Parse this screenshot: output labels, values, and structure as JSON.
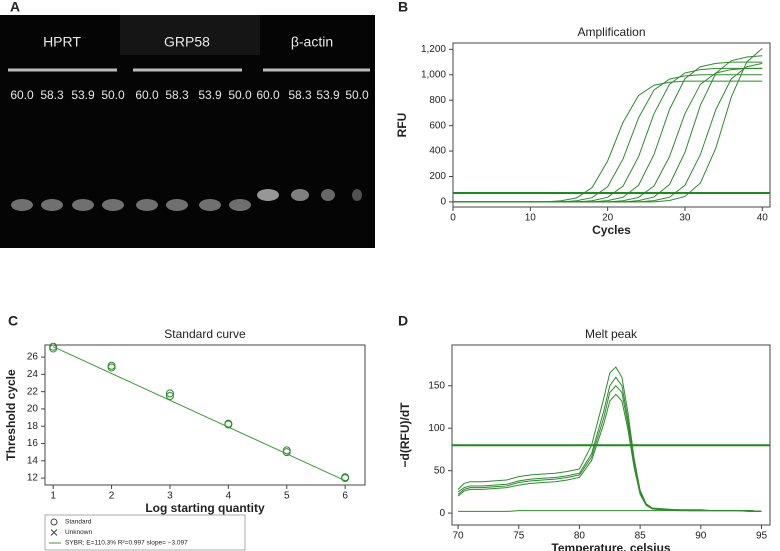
{
  "gel": {
    "panel_label": "A",
    "lanes": [
      {
        "gene": "HPRT",
        "temperatures": [
          "60.0",
          "58.3",
          "53.9",
          "50.0"
        ]
      },
      {
        "gene": "GRP58",
        "temperatures": [
          "60.0",
          "58.3",
          "53.9",
          "50.0"
        ]
      },
      {
        "gene": "β-actin",
        "temperatures": [
          "60.0",
          "58.3",
          "53.9",
          "50.0"
        ]
      }
    ]
  },
  "chart_data": [
    {
      "type": "line",
      "panel_label": "B",
      "title": "Amplification",
      "x_label": "Cycles",
      "y_label": "RFU",
      "x": [
        0,
        2,
        4,
        6,
        8,
        10,
        12,
        14,
        16,
        18,
        20,
        22,
        24,
        26,
        28,
        30,
        32,
        34,
        36,
        38,
        40
      ],
      "series": [
        {
          "color": "#2e8b2e",
          "values": [
            0,
            0,
            0,
            0,
            0,
            0,
            0,
            9,
            32,
            113,
            322,
            628,
            837,
            918,
            941,
            950,
            950,
            950,
            950,
            950,
            950
          ]
        },
        {
          "color": "#2e8b2e",
          "values": [
            0,
            0,
            0,
            0,
            0,
            0,
            0,
            0,
            9,
            34,
            119,
            339,
            661,
            881,
            966,
            991,
            1000,
            1000,
            1000,
            1000,
            1000
          ]
        },
        {
          "color": "#2e8b2e",
          "values": [
            0,
            0,
            0,
            0,
            0,
            0,
            0,
            0,
            0,
            9,
            36,
            125,
            356,
            694,
            925,
            1014,
            1041,
            1050,
            1050,
            1050,
            1050
          ]
        },
        {
          "color": "#2e8b2e",
          "values": [
            0,
            0,
            0,
            0,
            0,
            0,
            0,
            0,
            0,
            0,
            10,
            37,
            131,
            373,
            727,
            969,
            1063,
            1090,
            1100,
            1100,
            1100
          ]
        },
        {
          "color": "#2e8b2e",
          "values": [
            0,
            0,
            0,
            0,
            0,
            0,
            0,
            0,
            0,
            0,
            0,
            9,
            36,
            125,
            356,
            694,
            925,
            1014,
            1041,
            1050,
            1050
          ]
        },
        {
          "color": "#2e8b2e",
          "values": [
            0,
            0,
            0,
            0,
            0,
            0,
            0,
            0,
            0,
            0,
            0,
            0,
            10,
            39,
            137,
            390,
            760,
            1013,
            1111,
            1140,
            1150
          ]
        },
        {
          "color": "#2e8b2e",
          "values": [
            0,
            0,
            0,
            0,
            0,
            0,
            0,
            0,
            0,
            0,
            0,
            0,
            0,
            10,
            37,
            131,
            373,
            727,
            969,
            1063,
            1090
          ]
        },
        {
          "color": "#2e8b2e",
          "values": [
            0,
            0,
            0,
            0,
            0,
            0,
            0,
            0,
            0,
            0,
            0,
            0,
            0,
            0,
            11,
            43,
            149,
            424,
            826,
            1101,
            1208
          ]
        }
      ],
      "threshold": 70,
      "threshold_color": "#1e8a1e",
      "xlim": [
        0,
        41
      ],
      "xticks": [
        0,
        10,
        20,
        30,
        40
      ],
      "ylim": [
        -40,
        1250
      ],
      "yticks": [
        0,
        200,
        400,
        600,
        800,
        {
          "value": 1000,
          "label": "1,000"
        },
        {
          "value": 1200,
          "label": "1,200"
        }
      ],
      "grid": false
    },
    {
      "type": "scatter",
      "panel_label": "C",
      "title": "Standard curve",
      "x_label": "Log starting quantity",
      "y_label": "Threshold cycle",
      "series": [
        {
          "name": "Standard",
          "marker": "circle",
          "color": "#2e8b2e",
          "x": [
            1,
            1,
            2,
            2,
            3,
            3,
            4,
            4,
            5,
            5,
            6,
            6
          ],
          "values": [
            27.0,
            27.2,
            24.8,
            25.0,
            21.5,
            21.8,
            18.2,
            18.3,
            15.0,
            15.2,
            12.0,
            12.1
          ]
        },
        {
          "name": "Unknown",
          "marker": "cross",
          "color": "#555555",
          "x": [],
          "values": []
        },
        {
          "name": "SYBR; E=110.3% R²=0.997 slope= −3.097",
          "marker": "line",
          "color": "#3a9a3a",
          "x": [
            1,
            6
          ],
          "values": [
            27.2,
            11.7
          ]
        }
      ],
      "xlim": [
        0.86,
        6.34
      ],
      "xticks": [
        1,
        2,
        3,
        4,
        5,
        6
      ],
      "ylim": [
        11.2,
        27.4
      ],
      "yticks": [
        12,
        14,
        16,
        18,
        20,
        22,
        24,
        26
      ],
      "grid": false,
      "legend": "below"
    },
    {
      "type": "line",
      "panel_label": "D",
      "title": "Melt peak",
      "x_label": "Temperature, celsius",
      "y_label": "−d(RFU)/dT",
      "x": [
        70,
        70.5,
        71,
        72,
        73,
        74,
        75,
        76,
        77,
        78,
        79,
        80,
        81,
        82,
        82.5,
        83,
        83.5,
        84,
        84.5,
        85,
        85.5,
        86,
        87,
        88,
        89,
        90,
        91,
        92,
        93,
        94,
        95
      ],
      "series": [
        {
          "color": "#2e8b2e",
          "values": [
            25,
            30,
            32,
            32,
            33,
            34,
            38,
            40,
            41,
            42,
            44,
            47,
            70,
            120,
            150,
            160,
            150,
            110,
            60,
            25,
            10,
            5,
            4,
            4,
            3,
            3,
            3,
            3,
            3,
            3,
            2
          ]
        },
        {
          "color": "#2e8b2e",
          "values": [
            28,
            35,
            37,
            37,
            38,
            39,
            43,
            45,
            46,
            47,
            49,
            52,
            80,
            135,
            165,
            172,
            160,
            118,
            65,
            27,
            11,
            6,
            5,
            4,
            4,
            4,
            3,
            3,
            3,
            3,
            2
          ]
        },
        {
          "color": "#2e8b2e",
          "values": [
            20,
            26,
            28,
            28,
            29,
            30,
            33,
            35,
            36,
            37,
            39,
            42,
            62,
            105,
            132,
            140,
            132,
            98,
            54,
            22,
            9,
            5,
            4,
            3,
            3,
            3,
            3,
            3,
            3,
            2,
            2
          ]
        },
        {
          "color": "#2e8b2e",
          "values": [
            22,
            28,
            30,
            30,
            31,
            32,
            36,
            38,
            39,
            40,
            42,
            45,
            66,
            112,
            142,
            150,
            142,
            104,
            57,
            24,
            10,
            5,
            4,
            4,
            3,
            3,
            3,
            3,
            3,
            3,
            2
          ]
        },
        {
          "color": "#2e8b2e",
          "values": [
            2,
            2,
            2,
            2,
            2,
            2,
            3,
            3,
            3,
            3,
            3,
            3,
            3,
            3,
            3,
            3,
            3,
            3,
            3,
            3,
            3,
            3,
            3,
            3,
            3,
            3,
            3,
            3,
            3,
            2,
            2
          ]
        }
      ],
      "threshold": 80,
      "threshold_color": "#1e8a1e",
      "xlim": [
        69.5,
        95.7
      ],
      "xticks": [
        70,
        75,
        80,
        85,
        90,
        95
      ],
      "ylim": [
        -14,
        198
      ],
      "yticks": [
        0,
        50,
        100,
        150
      ],
      "grid": false
    }
  ]
}
